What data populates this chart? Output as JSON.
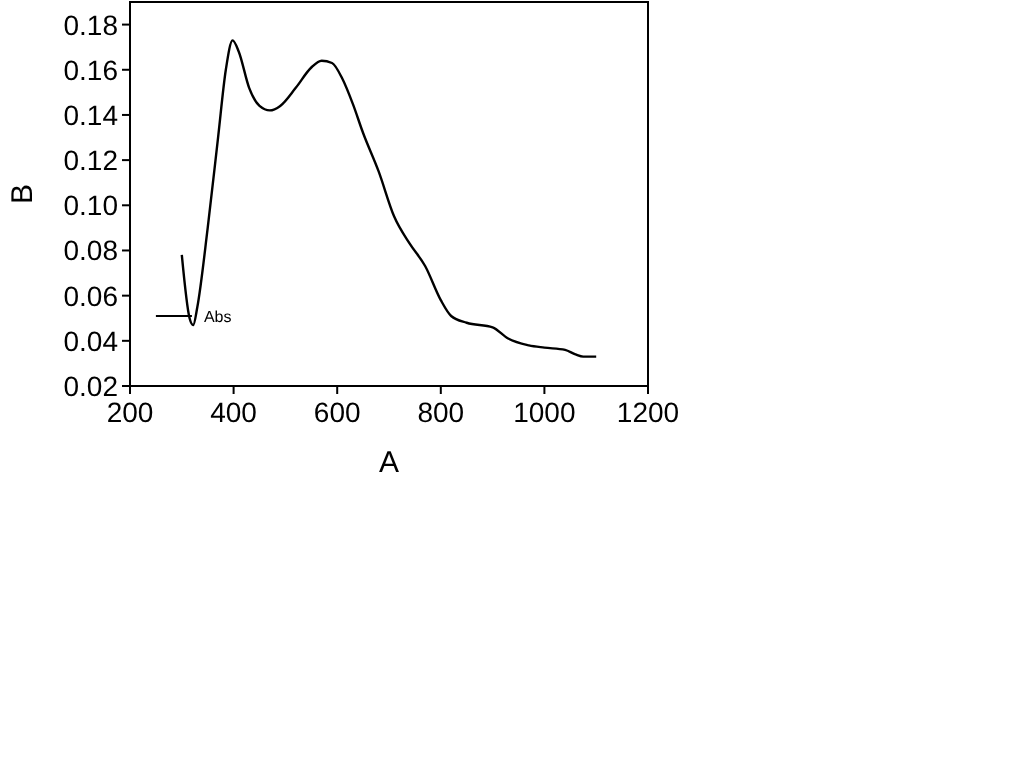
{
  "chart_data": {
    "type": "line",
    "xlabel": "A",
    "ylabel": "B",
    "xlim": [
      200,
      1200
    ],
    "ylim": [
      0.02,
      0.19
    ],
    "xticks": [
      200,
      400,
      600,
      800,
      1000,
      1200
    ],
    "yticks": [
      0.02,
      0.04,
      0.06,
      0.08,
      {
        "value": 0.1,
        "label": "0.10"
      },
      0.12,
      0.14,
      0.16,
      0.18
    ],
    "legend": "bottom left",
    "grid": false,
    "marker": "none",
    "line_style": "solid",
    "series": [
      {
        "name": "Abs",
        "color": "#000000",
        "x": [
          300,
          315,
          322,
          330,
          350,
          370,
          385,
          398,
          410,
          430,
          450,
          470,
          490,
          520,
          550,
          570,
          590,
          610,
          630,
          650,
          680,
          710,
          740,
          770,
          800,
          820,
          850,
          900,
          930,
          970,
          1000,
          1040,
          1060,
          1075,
          1100
        ],
        "values": [
          0.078,
          0.05,
          0.047,
          0.055,
          0.09,
          0.13,
          0.16,
          0.173,
          0.168,
          0.152,
          0.144,
          0.142,
          0.144,
          0.152,
          0.161,
          0.164,
          0.163,
          0.156,
          0.145,
          0.132,
          0.115,
          0.095,
          0.083,
          0.073,
          0.058,
          0.051,
          0.048,
          0.046,
          0.041,
          0.038,
          0.037,
          0.036,
          0.034,
          0.033,
          0.033
        ]
      }
    ]
  }
}
